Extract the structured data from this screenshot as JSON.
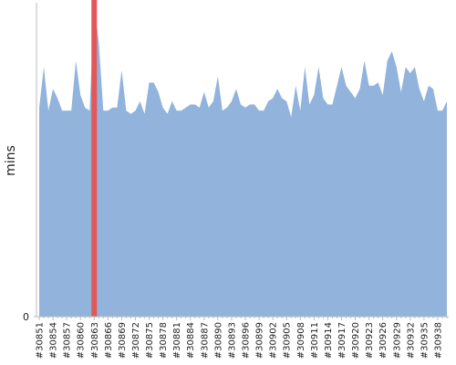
{
  "chart_data": {
    "type": "area",
    "y_label": "mins",
    "categories": [
      "#30851",
      null,
      null,
      "#30854",
      null,
      null,
      "#30857",
      null,
      null,
      "#30860",
      null,
      null,
      "#30863",
      null,
      null,
      "#30866",
      null,
      null,
      "#30869",
      null,
      null,
      "#30872",
      null,
      null,
      "#30875",
      null,
      null,
      "#30878",
      null,
      null,
      "#30881",
      null,
      null,
      "#30884",
      null,
      null,
      "#30887",
      null,
      null,
      "#30890",
      null,
      null,
      "#30893",
      null,
      null,
      "#30896",
      null,
      null,
      "#30899",
      null,
      null,
      "#30902",
      null,
      null,
      "#30905",
      null,
      null,
      "#30908",
      null,
      null,
      "#30911",
      null,
      null,
      "#30914",
      null,
      null,
      "#30917",
      null,
      null,
      "#30920",
      null,
      null,
      "#30923",
      null,
      null,
      "#30926",
      null,
      null,
      "#30929",
      null,
      null,
      "#30932",
      null,
      null,
      "#30935",
      null,
      null,
      "#30938",
      null,
      null
    ],
    "values": [
      67,
      80,
      66,
      73,
      70,
      66,
      66,
      66,
      82,
      71,
      67,
      66,
      100,
      88,
      66,
      66,
      67,
      67,
      79,
      66,
      65,
      66,
      69,
      65,
      75,
      75,
      72,
      67,
      65,
      69,
      66,
      66,
      67,
      68,
      68,
      67,
      72,
      67,
      69,
      77,
      66,
      67,
      69,
      73,
      68,
      67,
      68,
      68,
      66,
      66,
      69,
      70,
      73,
      70,
      69,
      64,
      74,
      66,
      80,
      68,
      71,
      80,
      70,
      68,
      68,
      74,
      80,
      74,
      72,
      70,
      73,
      82,
      74,
      74,
      75,
      71,
      82,
      85,
      80,
      72,
      80,
      78,
      80,
      73,
      69,
      74,
      73,
      66,
      66,
      69
    ],
    "color": "#92b4dc",
    "markers": [
      {
        "x": "#30863",
        "color": "#e45756"
      }
    ],
    "ylim": [
      0,
      100
    ],
    "yticks": [
      0
    ]
  }
}
